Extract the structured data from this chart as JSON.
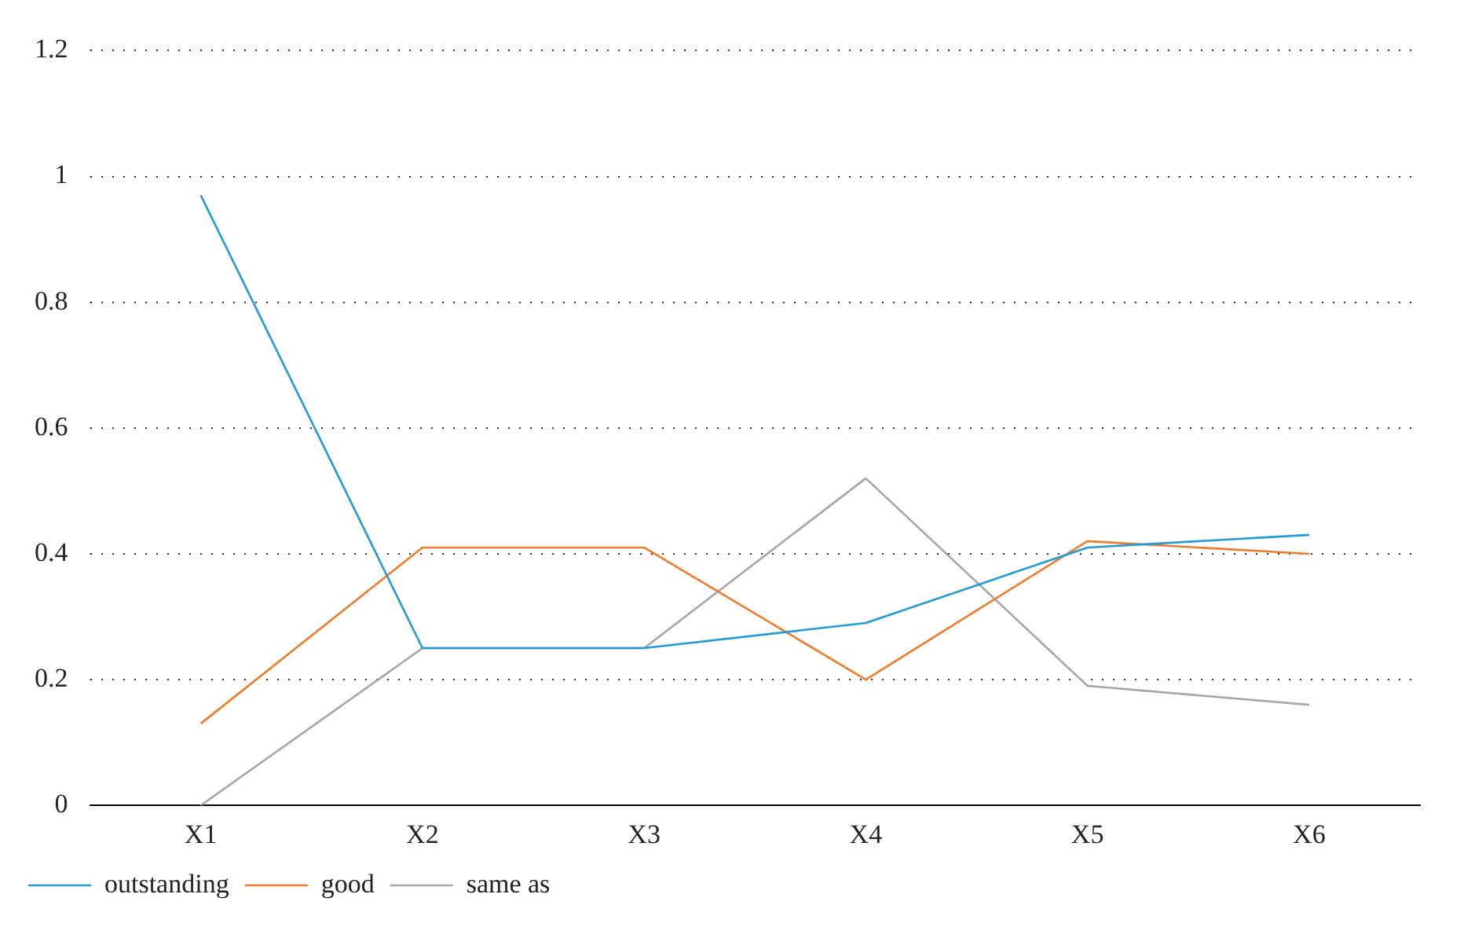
{
  "chart_data": {
    "type": "line",
    "categories": [
      "X1",
      "X2",
      "X3",
      "X4",
      "X5",
      "X6"
    ],
    "series": [
      {
        "name": "outstanding",
        "color": "#1f9bd7",
        "values": [
          0.97,
          0.25,
          0.25,
          0.29,
          0.41,
          0.43
        ]
      },
      {
        "name": "good",
        "color": "#f07b2a",
        "values": [
          0.13,
          0.41,
          0.41,
          0.2,
          0.42,
          0.4
        ]
      },
      {
        "name": "same as",
        "color": "#a6a6a6",
        "values": [
          0,
          0.25,
          0.25,
          0.52,
          0.19,
          0.16
        ]
      }
    ],
    "ylim": [
      0,
      1.2
    ],
    "yticks": [
      0,
      0.2,
      0.4,
      0.6,
      0.8,
      1,
      1.2
    ],
    "grid": "y",
    "legend": "bottom left",
    "marker": "none",
    "line_style": "solid"
  }
}
